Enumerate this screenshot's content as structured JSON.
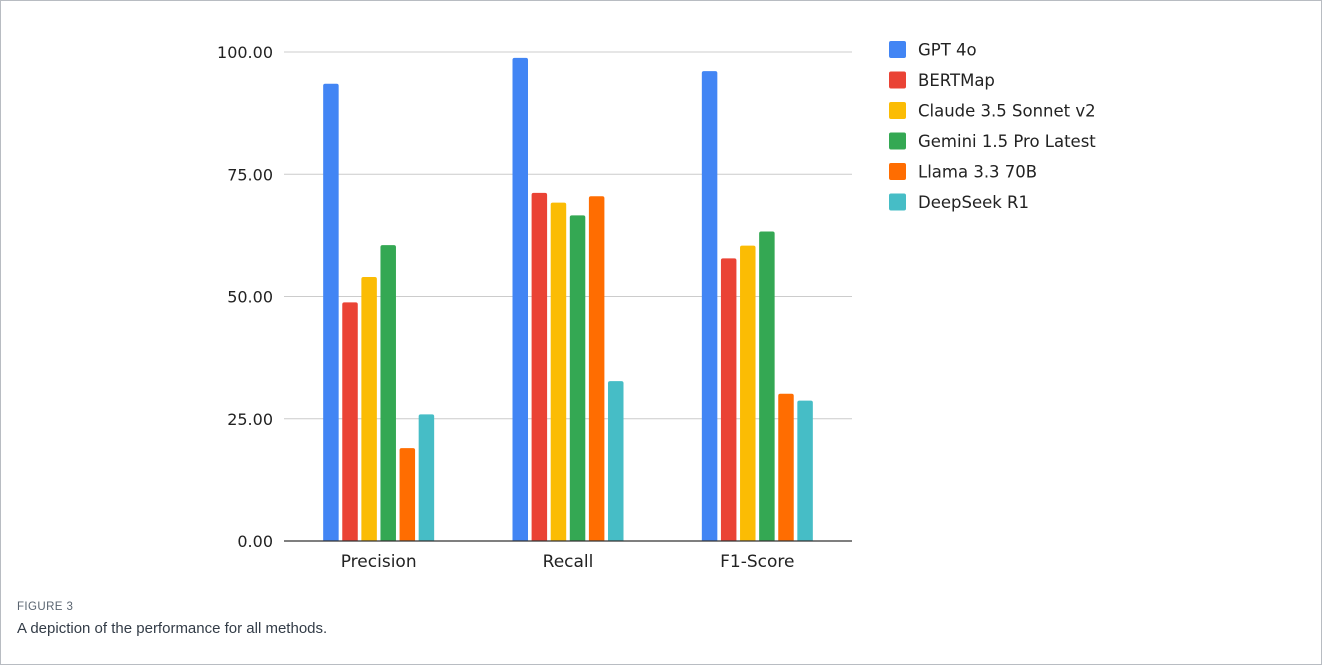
{
  "chart_data": {
    "type": "bar",
    "categories": [
      "Precision",
      "Recall",
      "F1-Score"
    ],
    "series": [
      {
        "name": "GPT 4o",
        "color": "#4285f4",
        "values": [
          93.5,
          98.8,
          96.1
        ]
      },
      {
        "name": "BERTMap",
        "color": "#ea4335",
        "values": [
          48.8,
          71.2,
          57.8
        ]
      },
      {
        "name": "Claude 3.5 Sonnet v2",
        "color": "#fbbc04",
        "values": [
          54.0,
          69.2,
          60.4
        ]
      },
      {
        "name": "Gemini 1.5 Pro Latest",
        "color": "#34a853",
        "values": [
          60.5,
          66.6,
          63.3
        ]
      },
      {
        "name": "Llama 3.3 70B",
        "color": "#ff6d01",
        "values": [
          19.0,
          70.5,
          30.1
        ]
      },
      {
        "name": "DeepSeek R1",
        "color": "#46bdc6",
        "values": [
          25.9,
          32.7,
          28.7
        ]
      }
    ],
    "yticks": [
      "0.00",
      "25.00",
      "50.00",
      "75.00",
      "100.00"
    ],
    "ylim": [
      0,
      100
    ],
    "grid": true,
    "legend_position": "right"
  },
  "caption": {
    "label": "FIGURE 3",
    "text": "A depiction of the performance for all methods."
  }
}
